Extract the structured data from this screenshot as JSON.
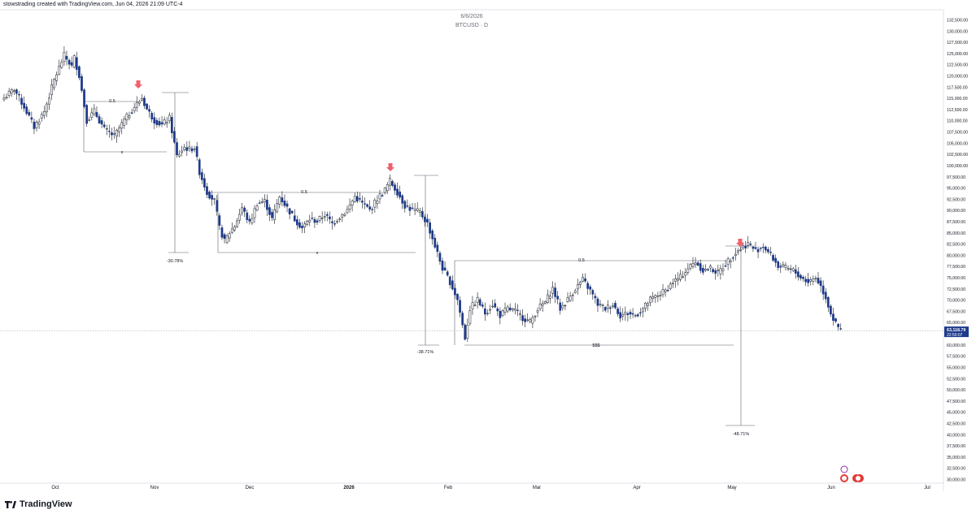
{
  "header": {
    "credit": "stowstrading created with TradingView.com, Jun 04, 2026 21:09 UTC-4",
    "date_label": "6/6/2026",
    "symbol_label": "BTCUSD · D"
  },
  "brand": {
    "name": "TradingView"
  },
  "colors": {
    "bull": "#ffffff",
    "bear": "#1d3a8a",
    "wick": "#131722",
    "arrow": "#f0616d",
    "price_tag": "#1d3a8a",
    "line": "#5d606b"
  },
  "chart_data": {
    "type": "candlestick",
    "title": "6/6/2026",
    "subtitle": "BTCUSD · D",
    "ylim": [
      30000,
      132500
    ],
    "y_ticks": [
      "132,500.00",
      "130,000.00",
      "127,500.00",
      "125,000.00",
      "122,500.00",
      "120,000.00",
      "117,500.00",
      "115,000.00",
      "112,500.00",
      "110,000.00",
      "107,500.00",
      "105,000.00",
      "102,500.00",
      "100,000.00",
      "97,500.00",
      "95,000.00",
      "92,500.00",
      "90,000.00",
      "87,500.00",
      "85,000.00",
      "82,500.00",
      "80,000.00",
      "77,500.00",
      "75,000.00",
      "72,500.00",
      "70,000.00",
      "67,500.00",
      "65,000.00",
      "62,500.00",
      "60,000.00",
      "57,500.00",
      "55,000.00",
      "52,500.00",
      "50,000.00",
      "47,500.00",
      "45,000.00",
      "42,500.00",
      "40,000.00",
      "37,500.00",
      "35,000.00",
      "32,500.00",
      "30,000.00"
    ],
    "x_ticks": [
      "Oct",
      "Nov",
      "Dec",
      "2026",
      "Feb",
      "Mar",
      "Apr",
      "May",
      "Jun",
      "Jul"
    ],
    "last_price": {
      "value": "63,118.79",
      "countdown": "22:50:07",
      "price": 63119
    },
    "price_path": [
      [
        0,
        115000
      ],
      [
        4,
        117000
      ],
      [
        8,
        113000
      ],
      [
        12,
        108500
      ],
      [
        16,
        112000
      ],
      [
        20,
        119000
      ],
      [
        24,
        124500
      ],
      [
        27,
        122000
      ],
      [
        28,
        124000
      ],
      [
        30,
        120000
      ],
      [
        33,
        110000
      ],
      [
        36,
        112000
      ],
      [
        40,
        108000
      ],
      [
        44,
        106500
      ],
      [
        48,
        110000
      ],
      [
        52,
        113000
      ],
      [
        55,
        115000
      ],
      [
        57,
        112500
      ],
      [
        60,
        110000
      ],
      [
        63,
        109000
      ],
      [
        66,
        110500
      ],
      [
        69,
        102000
      ],
      [
        72,
        104000
      ],
      [
        74,
        103500
      ],
      [
        76,
        104000
      ],
      [
        78,
        98500
      ],
      [
        81,
        94000
      ],
      [
        84,
        92000
      ],
      [
        86,
        86000
      ],
      [
        88,
        83000
      ],
      [
        90,
        85000
      ],
      [
        92,
        86500
      ],
      [
        95,
        90500
      ],
      [
        98,
        87000
      ],
      [
        101,
        91500
      ],
      [
        104,
        92000
      ],
      [
        107,
        88000
      ],
      [
        110,
        93000
      ],
      [
        113,
        90500
      ],
      [
        116,
        88000
      ],
      [
        119,
        86000
      ],
      [
        122,
        88000
      ],
      [
        125,
        87500
      ],
      [
        128,
        89000
      ],
      [
        131,
        87000
      ],
      [
        134,
        88500
      ],
      [
        137,
        90000
      ],
      [
        140,
        93000
      ],
      [
        143,
        91500
      ],
      [
        146,
        90000
      ],
      [
        149,
        92500
      ],
      [
        152,
        94500
      ],
      [
        154,
        96500
      ],
      [
        157,
        94000
      ],
      [
        160,
        91000
      ],
      [
        163,
        90000
      ],
      [
        166,
        89500
      ],
      [
        169,
        87000
      ],
      [
        172,
        82000
      ],
      [
        175,
        77000
      ],
      [
        178,
        74000
      ],
      [
        181,
        70000
      ],
      [
        184,
        61500
      ],
      [
        186,
        68000
      ],
      [
        189,
        70000
      ],
      [
        192,
        67000
      ],
      [
        195,
        69000
      ],
      [
        198,
        66500
      ],
      [
        201,
        68000
      ],
      [
        204,
        67500
      ],
      [
        207,
        66000
      ],
      [
        210,
        65000
      ],
      [
        213,
        68000
      ],
      [
        216,
        69500
      ],
      [
        219,
        72500
      ],
      [
        222,
        68000
      ],
      [
        225,
        70000
      ],
      [
        228,
        72500
      ],
      [
        231,
        74500
      ],
      [
        234,
        72000
      ],
      [
        237,
        69000
      ],
      [
        240,
        68000
      ],
      [
        243,
        69000
      ],
      [
        246,
        66500
      ],
      [
        249,
        67000
      ],
      [
        252,
        66500
      ],
      [
        255,
        68000
      ],
      [
        258,
        70000
      ],
      [
        261,
        71000
      ],
      [
        264,
        72000
      ],
      [
        267,
        74000
      ],
      [
        270,
        75000
      ],
      [
        273,
        77000
      ],
      [
        276,
        78500
      ],
      [
        279,
        76500
      ],
      [
        282,
        77000
      ],
      [
        285,
        76000
      ],
      [
        288,
        78000
      ],
      [
        291,
        80000
      ],
      [
        294,
        81500
      ],
      [
        297,
        82500
      ],
      [
        300,
        81000
      ],
      [
        303,
        82000
      ],
      [
        306,
        80000
      ],
      [
        309,
        77500
      ],
      [
        312,
        77000
      ],
      [
        315,
        76500
      ],
      [
        318,
        75000
      ],
      [
        321,
        74000
      ],
      [
        324,
        75000
      ],
      [
        326,
        73000
      ],
      [
        328,
        70500
      ],
      [
        330,
        67000
      ],
      [
        332,
        64500
      ],
      [
        334,
        63100
      ]
    ],
    "annotations": [
      {
        "label": "0.5"
      },
      {
        "label": "x"
      },
      {
        "label": "-30.78%"
      },
      {
        "label": "0.5"
      },
      {
        "label": "x"
      },
      {
        "label": "-38.71%"
      },
      {
        "label": "0.5"
      },
      {
        "label": "$$$"
      },
      {
        "label": "-48.71%"
      }
    ]
  }
}
